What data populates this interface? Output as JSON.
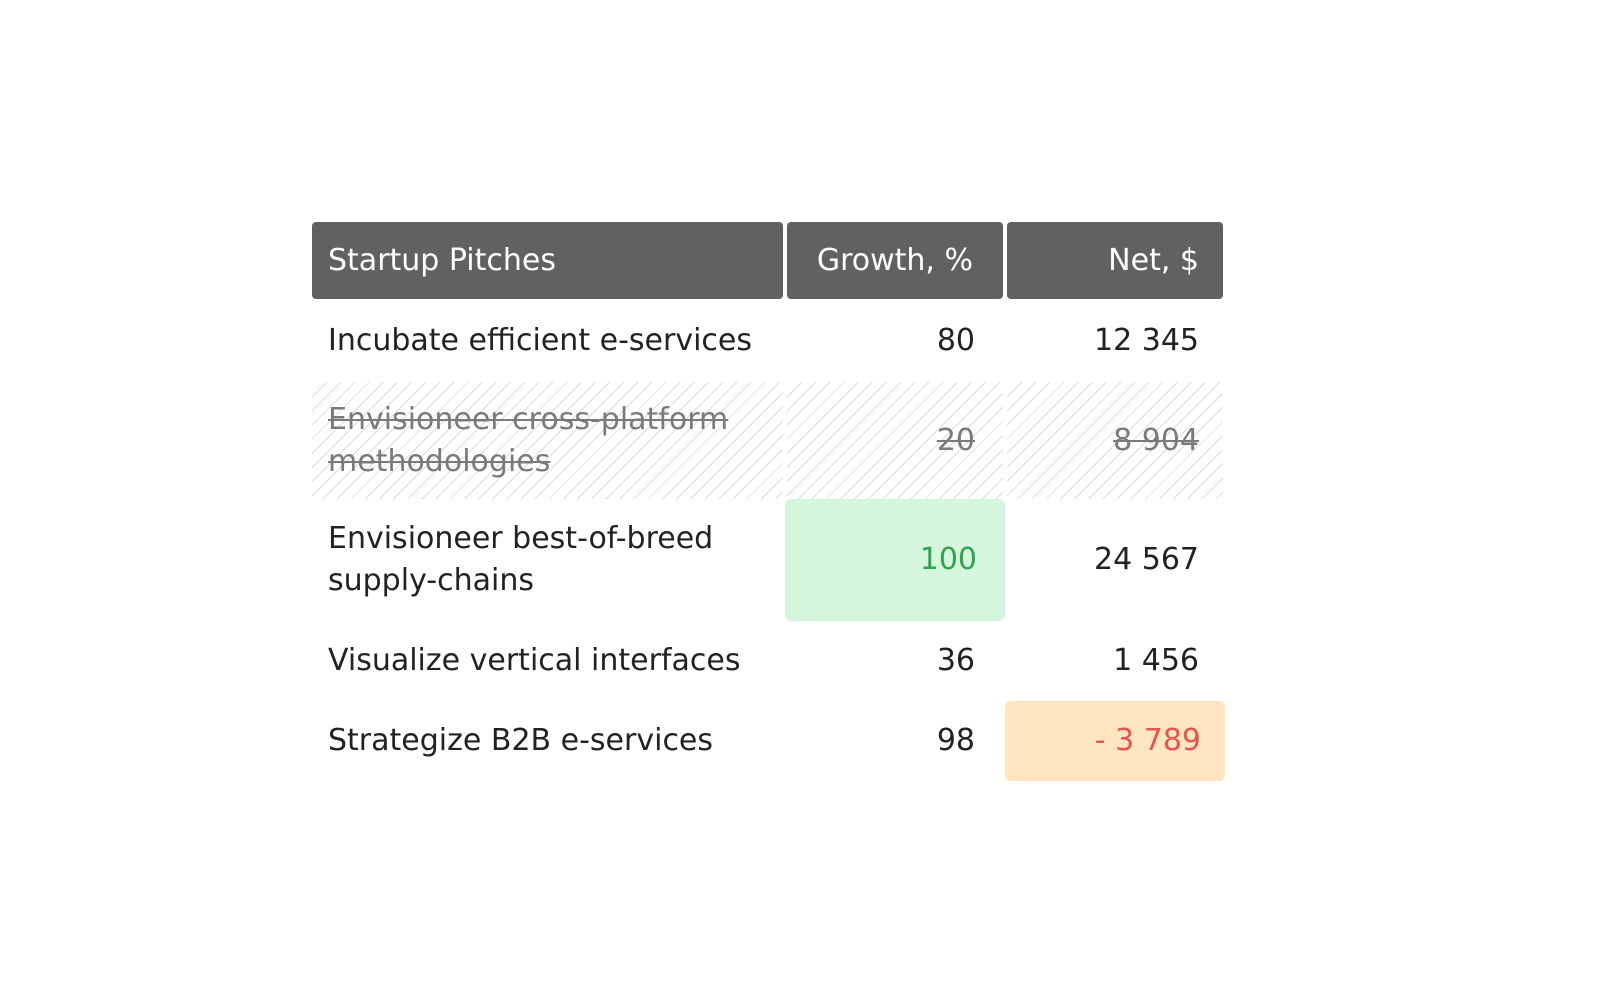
{
  "table": {
    "headers": [
      "Startup Pitches",
      "Growth, %",
      "Net, $"
    ],
    "rows": [
      {
        "pitch": "Incubate efficient e-services",
        "growth": "80",
        "net": "12 345"
      },
      {
        "pitch": "Envisioneer cross-platform methodologies",
        "growth": "20",
        "net": "8 904"
      },
      {
        "pitch": "Envisioneer best-of-breed supply-chains",
        "growth": "100",
        "net": "24 567"
      },
      {
        "pitch": "Visualize vertical interfaces",
        "growth": "36",
        "net": "1 456"
      },
      {
        "pitch": "Strategize B2B e-services",
        "growth": "98",
        "net": "- 3 789"
      }
    ]
  },
  "colors": {
    "header_bg": "#5f6163",
    "highlight_green_bg": "#d5f5dc",
    "highlight_green_text": "#2ea44f",
    "highlight_orange_bg": "#ffe6c0",
    "highlight_orange_text": "#e8554e",
    "struck_text": "#7a7a7a"
  }
}
